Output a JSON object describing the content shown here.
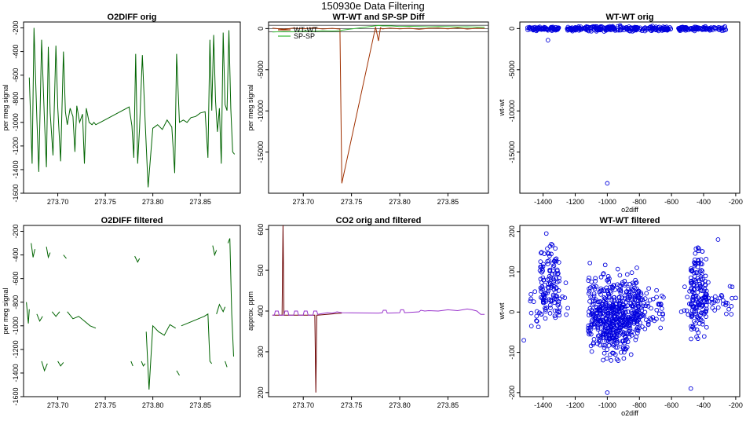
{
  "figure_title": "150930e   Data Filtering",
  "chart_data": [
    {
      "type": "line",
      "title": "O2DIFF orig",
      "xlabel": "",
      "ylabel": "per meg signal",
      "xlim": [
        273.664,
        273.892
      ],
      "ylim": [
        -1600,
        -150
      ],
      "xticks": [
        273.7,
        273.75,
        273.8,
        273.85
      ],
      "xtick_labels": [
        "273.70",
        "273.75",
        "273.80",
        "273.85"
      ],
      "yticks": [
        -1600,
        -1400,
        -1200,
        -1000,
        -800,
        -600,
        -400,
        -200
      ],
      "ytick_labels": [
        "-1600",
        "-1400",
        "-1200",
        "-1000",
        "-800",
        "-600",
        "-400",
        "-200"
      ],
      "series": [
        {
          "color": "#006400",
          "x": [
            273.67,
            273.673,
            273.675,
            273.678,
            273.68,
            273.683,
            273.686,
            273.688,
            273.69,
            273.692,
            273.695,
            273.698,
            273.7,
            273.703,
            273.706,
            273.708,
            273.71,
            273.713,
            273.716,
            273.718,
            273.72,
            273.723,
            273.726,
            273.728,
            273.73,
            273.733,
            273.736,
            273.738,
            273.74,
            273.775,
            273.778,
            273.78,
            273.782,
            273.784,
            273.786,
            273.789,
            273.792,
            273.795,
            273.8,
            273.805,
            273.81,
            273.815,
            273.82,
            273.823,
            273.825,
            273.828,
            273.832,
            273.836,
            273.84,
            273.845,
            273.85,
            273.855,
            273.858,
            273.86,
            273.862,
            273.864,
            273.866,
            273.868,
            273.87,
            273.872,
            273.874,
            273.876,
            273.878,
            273.88,
            273.882,
            273.884,
            273.886
          ],
          "y": [
            -620,
            -1350,
            -200,
            -960,
            -1420,
            -300,
            -980,
            -1380,
            -360,
            -920,
            -1280,
            -350,
            -880,
            -1330,
            -400,
            -910,
            -1020,
            -880,
            -950,
            -1250,
            -860,
            -1000,
            -930,
            -1350,
            -880,
            -1000,
            -1020,
            -1000,
            -1020,
            -870,
            -1030,
            -1300,
            -420,
            -1350,
            -1050,
            -430,
            -1000,
            -1550,
            -1050,
            -1020,
            -1060,
            -980,
            -1040,
            -1430,
            -420,
            -1000,
            -980,
            -1000,
            -960,
            -950,
            -920,
            -910,
            -1300,
            -300,
            -900,
            -260,
            -820,
            -1080,
            -880,
            -1350,
            -240,
            -850,
            -900,
            -220,
            -880,
            -1250,
            -1270
          ]
        }
      ]
    },
    {
      "type": "line",
      "title": "WT-WT and SP-SP Diff",
      "xlabel": "",
      "ylabel": "per meg signal",
      "xlim": [
        273.664,
        273.892
      ],
      "ylim": [
        -20000,
        800
      ],
      "xticks": [
        273.7,
        273.75,
        273.8,
        273.85
      ],
      "xtick_labels": [
        "273.70",
        "273.75",
        "273.80",
        "273.85"
      ],
      "yticks": [
        -15000,
        -10000,
        -5000,
        0
      ],
      "ytick_labels": [
        "-15000",
        "-10000",
        "-5000",
        "0"
      ],
      "hlines": [
        -400,
        0,
        400
      ],
      "legend": {
        "position": "top-left",
        "entries": [
          "WT-WT",
          "SP-SP"
        ]
      },
      "series": [
        {
          "name": "WT-WT",
          "color": "#a03000",
          "x": [
            273.668,
            273.68,
            273.69,
            273.7,
            273.71,
            273.72,
            273.73,
            273.738,
            273.74,
            273.775,
            273.778,
            273.78,
            273.782,
            273.79,
            273.8,
            273.81,
            273.82,
            273.83,
            273.84,
            273.85,
            273.86,
            273.87,
            273.88,
            273.888
          ],
          "y": [
            50,
            -80,
            60,
            -40,
            80,
            -50,
            30,
            -60,
            -18800,
            200,
            -1500,
            100,
            -50,
            60,
            -40,
            40,
            -80,
            30,
            60,
            -30,
            80,
            -60,
            40,
            20
          ]
        },
        {
          "name": "SP-SP",
          "color": "#33bb33",
          "x": [
            273.668,
            273.68,
            273.69,
            273.7,
            273.71,
            273.72,
            273.73,
            273.738,
            273.74,
            273.778,
            273.782,
            273.79,
            273.8,
            273.81,
            273.82,
            273.83,
            273.84,
            273.85,
            273.86,
            273.87,
            273.88,
            273.888
          ],
          "y": [
            -420,
            -350,
            -380,
            -300,
            -330,
            -280,
            -300,
            -280,
            -200,
            380,
            320,
            330,
            250,
            280,
            260,
            220,
            250,
            240,
            200,
            220,
            180,
            150
          ]
        }
      ]
    },
    {
      "type": "scatter",
      "title": "WT-WT orig",
      "xlabel": "o2diff",
      "ylabel": "wt-wt",
      "xlim": [
        -1545,
        -175
      ],
      "ylim": [
        -20000,
        800
      ],
      "xticks": [
        -1400,
        -1200,
        -1000,
        -800,
        -600,
        -400,
        -200
      ],
      "xtick_labels": [
        "-1400",
        "-1200",
        "-1000",
        "-800",
        "-600",
        "-400",
        "-200"
      ],
      "yticks": [
        -15000,
        -10000,
        -5000,
        0
      ],
      "ytick_labels": [
        "-15000",
        "-10000",
        "-5000",
        "0"
      ],
      "color": "#0000dd",
      "clusters": [
        {
          "x_from": -1500,
          "x_to": -1300,
          "y_center": 0,
          "y_spread": 180,
          "n": 80
        },
        {
          "x_from": -1250,
          "x_to": -600,
          "y_center": 0,
          "y_spread": 220,
          "n": 260
        },
        {
          "x_from": -560,
          "x_to": -260,
          "y_center": 0,
          "y_spread": 180,
          "n": 100
        }
      ],
      "points": [
        {
          "x": -1370,
          "y": -1400
        },
        {
          "x": -1000,
          "y": -18800
        },
        {
          "x": -920,
          "y": 380
        }
      ]
    },
    {
      "type": "line",
      "title": "O2DIFF filtered",
      "xlabel": "",
      "ylabel": "per meg signal",
      "xlim": [
        273.664,
        273.892
      ],
      "ylim": [
        -1600,
        -150
      ],
      "xticks": [
        273.7,
        273.75,
        273.8,
        273.85
      ],
      "xtick_labels": [
        "273.70",
        "273.75",
        "273.80",
        "273.85"
      ],
      "yticks": [
        -1600,
        -1400,
        -1200,
        -1000,
        -800,
        -600,
        -400,
        -200
      ],
      "ytick_labels": [
        "-1600",
        "-1400",
        "-1200",
        "-1000",
        "-800",
        "-600",
        "-400",
        "-200"
      ],
      "segments": [
        {
          "x": [
            273.667,
            273.669,
            273.67
          ],
          "y": [
            -800,
            -980,
            -860
          ]
        },
        {
          "x": [
            273.672,
            273.674,
            273.676
          ],
          "y": [
            -300,
            -420,
            -350
          ]
        },
        {
          "x": [
            273.678,
            273.681,
            273.684
          ],
          "y": [
            -900,
            -960,
            -920
          ]
        },
        {
          "x": [
            273.683,
            273.686,
            273.689
          ],
          "y": [
            -1300,
            -1380,
            -1320
          ]
        },
        {
          "x": [
            273.688,
            273.69,
            273.692
          ],
          "y": [
            -330,
            -420,
            -380
          ]
        },
        {
          "x": [
            273.694,
            273.698,
            273.702
          ],
          "y": [
            -880,
            -920,
            -880
          ]
        },
        {
          "x": [
            273.7,
            273.703,
            273.706
          ],
          "y": [
            -1300,
            -1340,
            -1310
          ]
        },
        {
          "x": [
            273.706,
            273.709
          ],
          "y": [
            -400,
            -430
          ]
        },
        {
          "x": [
            273.71,
            273.716,
            273.722,
            273.728,
            273.734,
            273.74
          ],
          "y": [
            -880,
            -940,
            -920,
            -960,
            -1000,
            -1020
          ]
        },
        {
          "x": [
            273.777,
            273.779
          ],
          "y": [
            -1300,
            -1340
          ]
        },
        {
          "x": [
            273.781,
            273.784,
            273.786
          ],
          "y": [
            -410,
            -460,
            -430
          ]
        },
        {
          "x": [
            273.788,
            273.79,
            273.792
          ],
          "y": [
            -1300,
            -1340,
            -1320
          ]
        },
        {
          "x": [
            273.793,
            273.796,
            273.8,
            273.806,
            273.812,
            273.818,
            273.824
          ],
          "y": [
            -1050,
            -1540,
            -1000,
            -1050,
            -1080,
            -990,
            -1020
          ]
        },
        {
          "x": [
            273.825,
            273.828
          ],
          "y": [
            -1380,
            -1420
          ]
        },
        {
          "x": [
            273.83,
            273.836,
            273.842,
            273.848,
            273.854,
            273.858,
            273.86,
            273.862
          ],
          "y": [
            -1000,
            -980,
            -960,
            -940,
            -920,
            -900,
            -1300,
            -1320
          ]
        },
        {
          "x": [
            273.863,
            273.865,
            273.867
          ],
          "y": [
            -320,
            -400,
            -360
          ]
        },
        {
          "x": [
            273.867,
            273.87,
            273.874,
            273.876
          ],
          "y": [
            -900,
            -820,
            -880,
            -840
          ]
        },
        {
          "x": [
            273.876,
            273.878
          ],
          "y": [
            -1300,
            -1350
          ]
        },
        {
          "x": [
            273.879,
            273.881,
            273.883,
            273.885
          ],
          "y": [
            -300,
            -260,
            -900,
            -1260
          ]
        }
      ],
      "color": "#006400"
    },
    {
      "type": "line",
      "title": "CO2 orig and filtered",
      "xlabel": "",
      "ylabel": "approx. ppm",
      "xlim": [
        273.664,
        273.892
      ],
      "ylim": [
        190,
        610
      ],
      "xticks": [
        273.7,
        273.75,
        273.8,
        273.85
      ],
      "xtick_labels": [
        "273.70",
        "273.75",
        "273.80",
        "273.85"
      ],
      "yticks": [
        200,
        300,
        400,
        500,
        600
      ],
      "ytick_labels": [
        "200",
        "300",
        "400",
        "500",
        "600"
      ],
      "series": [
        {
          "color": "#6b0000",
          "x": [
            273.668,
            273.678,
            273.679,
            273.68,
            273.681,
            273.712,
            273.713,
            273.714,
            273.715,
            273.74
          ],
          "y": [
            390,
            390,
            610,
            390,
            390,
            390,
            200,
            390,
            390,
            395
          ]
        },
        {
          "color": "#9933cc",
          "x": [
            273.668,
            273.67,
            273.671,
            273.674,
            273.675,
            273.68,
            273.681,
            273.684,
            273.685,
            273.69,
            273.691,
            273.694,
            273.695,
            273.7,
            273.701,
            273.704,
            273.705,
            273.71,
            273.711,
            273.714,
            273.715,
            273.72,
            273.725,
            273.73,
            273.735,
            273.74,
            273.778,
            273.782,
            273.783,
            273.786,
            273.787,
            273.8,
            273.801,
            273.804,
            273.805,
            273.82,
            273.822,
            273.826,
            273.83,
            273.84,
            273.85,
            273.86,
            273.87,
            273.875,
            273.88,
            273.884,
            273.888
          ],
          "y": [
            390,
            390,
            400,
            400,
            390,
            390,
            400,
            400,
            390,
            390,
            400,
            400,
            390,
            390,
            400,
            400,
            390,
            390,
            400,
            400,
            392,
            394,
            396,
            395,
            398,
            396,
            395,
            396,
            402,
            402,
            395,
            396,
            403,
            403,
            396,
            398,
            402,
            400,
            401,
            400,
            403,
            401,
            405,
            403,
            400,
            392,
            392
          ]
        }
      ]
    },
    {
      "type": "scatter",
      "title": "WT-WT filtered",
      "xlabel": "o2diff",
      "ylabel": "wt-wt",
      "xlim": [
        -1545,
        -175
      ],
      "ylim": [
        -210,
        215
      ],
      "xticks": [
        -1400,
        -1200,
        -1000,
        -800,
        -600,
        -400,
        -200
      ],
      "xtick_labels": [
        "-1400",
        "-1200",
        "-1000",
        "-800",
        "-600",
        "-400",
        "-200"
      ],
      "yticks": [
        -200,
        -100,
        0,
        100,
        200
      ],
      "ytick_labels": [
        "-200",
        "-100",
        "0",
        "100",
        "200"
      ],
      "color": "#0000dd",
      "clusters": [
        {
          "x_from": -1420,
          "x_to": -1300,
          "y_center": 70,
          "y_spread": 70,
          "n": 110
        },
        {
          "x_from": -1480,
          "x_to": -1240,
          "y_center": 20,
          "y_spread": 40,
          "n": 40
        },
        {
          "x_from": -1120,
          "x_to": -800,
          "y_center": 0,
          "y_spread": 70,
          "n": 420
        },
        {
          "x_from": -1060,
          "x_to": -880,
          "y_center": -40,
          "y_spread": 60,
          "n": 120
        },
        {
          "x_from": -820,
          "x_to": -650,
          "y_center": 15,
          "y_spread": 40,
          "n": 60
        },
        {
          "x_from": -480,
          "x_to": -380,
          "y_center": 50,
          "y_spread": 80,
          "n": 140
        },
        {
          "x_from": -540,
          "x_to": -220,
          "y_center": 20,
          "y_spread": 35,
          "n": 60
        }
      ],
      "points": [
        {
          "x": -1380,
          "y": 195
        },
        {
          "x": -1000,
          "y": -200
        },
        {
          "x": -480,
          "y": -190
        },
        {
          "x": -310,
          "y": 180
        },
        {
          "x": -1520,
          "y": -70
        },
        {
          "x": -200,
          "y": 35
        }
      ]
    }
  ]
}
